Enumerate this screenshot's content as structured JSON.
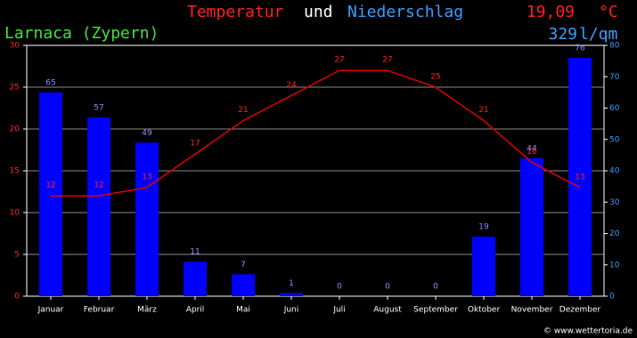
{
  "chart_data": {
    "type": "bar_line",
    "title_temperature": "Temperatur",
    "title_and": "und",
    "title_precipitation": "Niederschlag",
    "mean_temperature": "19,09",
    "temperature_unit": "°C",
    "location": "Larnaca (Zypern)",
    "annual_precipitation": 329,
    "precipitation_unit": "l/qm",
    "credit": "© www.wettertoria.de",
    "categories": [
      "Januar",
      "Februar",
      "März",
      "April",
      "Mai",
      "Juni",
      "Juli",
      "August",
      "September",
      "Oktober",
      "November",
      "Dezember"
    ],
    "series": [
      {
        "name": "Niederschlag",
        "type": "bar",
        "axis": "y2",
        "color": "#0000ff",
        "label_color": "#8c8cff",
        "values": [
          65,
          57,
          49,
          11,
          7,
          1,
          0,
          0,
          0,
          19,
          44,
          76
        ]
      },
      {
        "name": "Temperatur",
        "type": "line",
        "axis": "y",
        "color": "#e00000",
        "label_color": "#ff2020",
        "values": [
          12,
          12,
          13,
          17,
          21,
          24,
          27,
          27,
          25,
          21,
          16,
          13
        ]
      }
    ],
    "ylim": [
      0,
      30
    ],
    "yticks": [
      0,
      5,
      10,
      15,
      20,
      25,
      30
    ],
    "y2lim": [
      0,
      80
    ],
    "y2ticks": [
      0,
      10,
      20,
      30,
      40,
      50,
      60,
      70,
      80
    ],
    "grid": true
  }
}
